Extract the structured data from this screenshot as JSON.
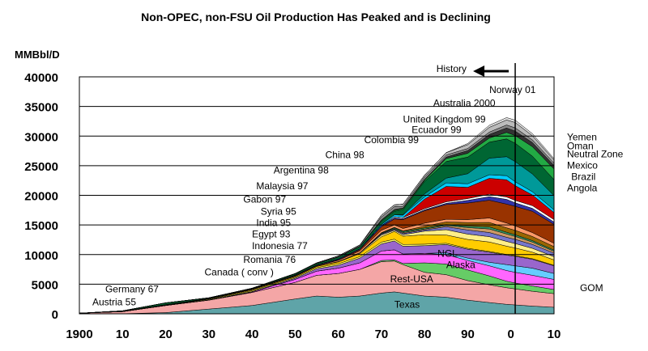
{
  "chart_data": {
    "type": "area",
    "title": "Non-OPEC, non-FSU Oil Production Has Peaked and is Declining",
    "ylabel": "MMBbl/D",
    "xlabel": "",
    "xlim": [
      1900,
      2010
    ],
    "ylim": [
      0,
      40000
    ],
    "y_ticks": [
      "0",
      "5000",
      "10000",
      "15000",
      "20000",
      "25000",
      "30000",
      "35000",
      "40000"
    ],
    "x_ticks": [
      {
        "x": 1900,
        "label": "1900"
      },
      {
        "x": 1910,
        "label": "10"
      },
      {
        "x": 1920,
        "label": "20"
      },
      {
        "x": 1930,
        "label": "30"
      },
      {
        "x": 1940,
        "label": "40"
      },
      {
        "x": 1950,
        "label": "50"
      },
      {
        "x": 1960,
        "label": "60"
      },
      {
        "x": 1970,
        "label": "70"
      },
      {
        "x": 1980,
        "label": "80"
      },
      {
        "x": 1990,
        "label": "90"
      },
      {
        "x": 2000,
        "label": "0"
      },
      {
        "x": 2010,
        "label": "10"
      }
    ],
    "grid": "horizontal",
    "history_marker": {
      "x": 2001,
      "label": "History"
    },
    "x": [
      1900,
      1910,
      1920,
      1930,
      1940,
      1950,
      1955,
      1960,
      1965,
      1970,
      1973,
      1975,
      1980,
      1985,
      1990,
      1995,
      1999,
      2001,
      2005,
      2010
    ],
    "series": [
      {
        "name": "Texas",
        "color": "#5fa4a8",
        "values": [
          0,
          20,
          200,
          800,
          1400,
          2500,
          3000,
          2800,
          3000,
          3500,
          3700,
          3500,
          3000,
          2800,
          2300,
          1900,
          1600,
          1500,
          1300,
          1100
        ]
      },
      {
        "name": "Rest-USA",
        "color": "#f4a6a6",
        "values": [
          100,
          350,
          1200,
          1500,
          2200,
          2800,
          3500,
          4000,
          4500,
          5300,
          5200,
          4800,
          4000,
          3800,
          3300,
          3000,
          2800,
          2700,
          2500,
          2300
        ]
      },
      {
        "name": "Alaska",
        "color": "#66cc66",
        "values": [
          0,
          0,
          0,
          0,
          0,
          0,
          0,
          0,
          0,
          200,
          200,
          200,
          1600,
          1800,
          1800,
          1500,
          1100,
          1000,
          900,
          700
        ]
      },
      {
        "name": "NGL",
        "color": "#ff66ff",
        "values": [
          0,
          0,
          0,
          50,
          100,
          500,
          700,
          900,
          1100,
          1600,
          1700,
          1600,
          1600,
          1600,
          1600,
          1700,
          1800,
          1800,
          1800,
          1700
        ]
      },
      {
        "name": "GOM",
        "color": "#66ccff",
        "values": [
          0,
          0,
          0,
          0,
          0,
          0,
          0,
          0,
          0,
          0,
          0,
          0,
          0,
          300,
          400,
          600,
          1000,
          1100,
          1200,
          1000
        ]
      },
      {
        "name": "Canada ( conv )",
        "color": "#9966cc",
        "values": [
          0,
          0,
          0,
          0,
          50,
          200,
          400,
          500,
          800,
          1200,
          1500,
          1300,
          1300,
          1400,
          1500,
          1700,
          1600,
          1600,
          1500,
          1300
        ]
      },
      {
        "name": "Romania",
        "color": "#ffff66",
        "values": [
          0,
          30,
          50,
          100,
          150,
          150,
          200,
          250,
          250,
          300,
          300,
          300,
          250,
          200,
          150,
          120,
          120,
          110,
          100,
          90
        ]
      },
      {
        "name": "Indonesia",
        "color": "#ffcc00",
        "values": [
          0,
          50,
          50,
          100,
          150,
          150,
          200,
          300,
          500,
          900,
          1300,
          1400,
          1600,
          1400,
          1500,
          1600,
          1400,
          1300,
          1100,
          900
        ]
      },
      {
        "name": "Egypt",
        "color": "#ffee88",
        "values": [
          0,
          0,
          0,
          0,
          10,
          50,
          50,
          60,
          120,
          300,
          200,
          250,
          600,
          900,
          900,
          900,
          800,
          750,
          650,
          550
        ]
      },
      {
        "name": "India",
        "color": "#7777cc",
        "values": [
          0,
          0,
          0,
          0,
          0,
          0,
          0,
          0,
          50,
          150,
          150,
          200,
          200,
          500,
          700,
          700,
          700,
          700,
          650,
          600
        ]
      },
      {
        "name": "Syria",
        "color": "#cc9966",
        "values": [
          0,
          0,
          0,
          0,
          0,
          0,
          0,
          0,
          0,
          100,
          100,
          150,
          150,
          200,
          400,
          600,
          550,
          500,
          400,
          300
        ]
      },
      {
        "name": "Gabon",
        "color": "#339966",
        "values": [
          0,
          0,
          0,
          0,
          0,
          0,
          0,
          0,
          0,
          100,
          150,
          200,
          200,
          150,
          250,
          350,
          300,
          280,
          250,
          200
        ]
      },
      {
        "name": "Malaysia",
        "color": "#996600",
        "values": [
          0,
          0,
          0,
          0,
          0,
          0,
          0,
          0,
          0,
          50,
          100,
          100,
          300,
          450,
          600,
          750,
          750,
          750,
          700,
          600
        ]
      },
      {
        "name": "Argentina",
        "color": "#ff9966",
        "values": [
          0,
          0,
          50,
          50,
          100,
          100,
          100,
          200,
          300,
          400,
          400,
          400,
          500,
          450,
          500,
          750,
          800,
          750,
          650,
          550
        ]
      },
      {
        "name": "China",
        "color": "#993300",
        "values": [
          0,
          0,
          0,
          0,
          0,
          0,
          0,
          100,
          200,
          600,
          1000,
          1500,
          2100,
          2500,
          2800,
          3000,
          3200,
          3300,
          3600,
          3200
        ]
      },
      {
        "name": "Colombia",
        "color": "#3333aa",
        "values": [
          0,
          0,
          0,
          0,
          50,
          100,
          100,
          150,
          150,
          200,
          200,
          150,
          150,
          200,
          450,
          600,
          800,
          600,
          500,
          400
        ]
      },
      {
        "name": "Ecuador",
        "color": "#ffffff",
        "values": [
          0,
          0,
          0,
          0,
          0,
          0,
          0,
          0,
          0,
          0,
          200,
          200,
          200,
          250,
          300,
          400,
          400,
          400,
          450,
          400
        ]
      },
      {
        "name": "United Kingdom",
        "color": "#cc0000",
        "values": [
          0,
          0,
          0,
          0,
          0,
          0,
          0,
          0,
          0,
          0,
          0,
          0,
          1600,
          2600,
          1900,
          2700,
          2900,
          2500,
          1800,
          1200
        ]
      },
      {
        "name": "Australia",
        "color": "#00ccff",
        "values": [
          0,
          0,
          0,
          0,
          0,
          0,
          0,
          0,
          0,
          200,
          300,
          400,
          400,
          600,
          600,
          600,
          700,
          650,
          550,
          450
        ]
      },
      {
        "name": "Norway",
        "color": "#009999",
        "values": [
          0,
          0,
          0,
          0,
          0,
          0,
          0,
          0,
          0,
          0,
          0,
          100,
          500,
          800,
          1700,
          2800,
          3200,
          3400,
          3000,
          2400
        ]
      },
      {
        "name": "Mexico",
        "color": "#006633",
        "values": [
          0,
          50,
          300,
          100,
          100,
          200,
          250,
          300,
          350,
          500,
          600,
          800,
          2100,
          2800,
          2800,
          2700,
          3000,
          3100,
          3000,
          2700
        ]
      },
      {
        "name": "Brazil",
        "color": "#22aa44",
        "values": [
          0,
          0,
          0,
          0,
          0,
          0,
          0,
          50,
          100,
          150,
          150,
          200,
          200,
          500,
          650,
          700,
          1100,
          1300,
          1600,
          1800
        ]
      },
      {
        "name": "Angola",
        "color": "#333333",
        "values": [
          0,
          0,
          0,
          0,
          0,
          0,
          0,
          0,
          0,
          100,
          150,
          100,
          150,
          250,
          450,
          600,
          750,
          750,
          700,
          600
        ]
      },
      {
        "name": "Neutral Zone",
        "color": "#888888",
        "values": [
          0,
          0,
          0,
          0,
          0,
          50,
          100,
          150,
          200,
          500,
          500,
          300,
          400,
          350,
          350,
          400,
          500,
          550,
          450,
          400
        ]
      },
      {
        "name": "Oman",
        "color": "#bbbbbb",
        "values": [
          0,
          0,
          0,
          0,
          0,
          0,
          0,
          0,
          0,
          300,
          300,
          350,
          300,
          400,
          650,
          800,
          850,
          900,
          700,
          500
        ]
      },
      {
        "name": "Yemen",
        "color": "#dddddd",
        "values": [
          0,
          0,
          0,
          0,
          0,
          0,
          0,
          0,
          0,
          0,
          0,
          0,
          0,
          0,
          200,
          350,
          400,
          400,
          350,
          250
        ]
      }
    ],
    "annotations": [
      {
        "text": "Texas",
        "x": 1973,
        "y": 1000,
        "color": "#000000"
      },
      {
        "text": "Rest-USA",
        "x": 1972,
        "y": 5300,
        "color": "#000000"
      },
      {
        "text": "Alaska",
        "x": 1985,
        "y": 7700,
        "color": "#000000"
      },
      {
        "text": "NGL",
        "x": 1983,
        "y": 9600,
        "color": "#000000"
      },
      {
        "text": "GOM",
        "x": 2016,
        "y": 3800,
        "color": "#000000"
      },
      {
        "text": "Austria   55",
        "x": 1903,
        "y": 1400,
        "color": "#000000"
      },
      {
        "text": "Germany    67",
        "x": 1906,
        "y": 3600,
        "color": "#000000"
      },
      {
        "text": "Canada (   conv )",
        "x": 1929,
        "y": 6500,
        "color": "#000000"
      },
      {
        "text": "Romania      76",
        "x": 1938,
        "y": 8600,
        "color": "#000000"
      },
      {
        "text": "Indonesia      77",
        "x": 1940,
        "y": 10900,
        "color": "#000000"
      },
      {
        "text": "Egypt      93",
        "x": 1940,
        "y": 12900,
        "color": "#000000"
      },
      {
        "text": "India  95",
        "x": 1941,
        "y": 14800,
        "color": "#000000"
      },
      {
        "text": "Syria     95",
        "x": 1942,
        "y": 16700,
        "color": "#000000"
      },
      {
        "text": "Gabon    97",
        "x": 1938,
        "y": 18800,
        "color": "#000000"
      },
      {
        "text": "Malaysia 97",
        "x": 1941,
        "y": 21000,
        "color": "#000000"
      },
      {
        "text": "Argentina     98",
        "x": 1945,
        "y": 23700,
        "color": "#000000"
      },
      {
        "text": "China 98",
        "x": 1957,
        "y": 26300,
        "color": "#000000"
      },
      {
        "text": "Colombia      99",
        "x": 1966,
        "y": 28800,
        "color": "#000000"
      },
      {
        "text": "Ecuador 99",
        "x": 1977,
        "y": 30500,
        "color": "#000000"
      },
      {
        "text": "United Kingdom      99",
        "x": 1975,
        "y": 32300,
        "color": "#000000"
      },
      {
        "text": "Australia    2000",
        "x": 1982,
        "y": 35000,
        "color": "#000000"
      },
      {
        "text": "Norway     01",
        "x": 1995,
        "y": 37300,
        "color": "#000000"
      },
      {
        "text": "Yemen",
        "x": 2013,
        "y": 29300,
        "color": "#000000"
      },
      {
        "text": "Oman",
        "x": 2013,
        "y": 27800,
        "color": "#000000"
      },
      {
        "text": "Neutral Zone",
        "x": 2013,
        "y": 26400,
        "color": "#000000"
      },
      {
        "text": "Mexico",
        "x": 2013,
        "y": 24500,
        "color": "#000000"
      },
      {
        "text": "Brazil",
        "x": 2014,
        "y": 22600,
        "color": "#000000"
      },
      {
        "text": "Angola",
        "x": 2013,
        "y": 20700,
        "color": "#000000"
      }
    ]
  }
}
